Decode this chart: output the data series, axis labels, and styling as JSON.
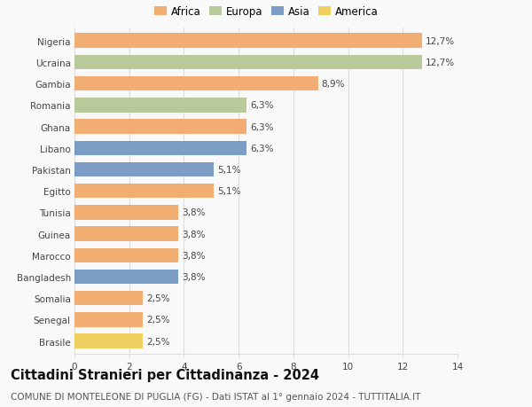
{
  "countries": [
    "Nigeria",
    "Ucraina",
    "Gambia",
    "Romania",
    "Ghana",
    "Libano",
    "Pakistan",
    "Egitto",
    "Tunisia",
    "Guinea",
    "Marocco",
    "Bangladesh",
    "Somalia",
    "Senegal",
    "Brasile"
  ],
  "values": [
    12.7,
    12.7,
    8.9,
    6.3,
    6.3,
    6.3,
    5.1,
    5.1,
    3.8,
    3.8,
    3.8,
    3.8,
    2.5,
    2.5,
    2.5
  ],
  "labels": [
    "12,7%",
    "12,7%",
    "8,9%",
    "6,3%",
    "6,3%",
    "6,3%",
    "5,1%",
    "5,1%",
    "3,8%",
    "3,8%",
    "3,8%",
    "3,8%",
    "2,5%",
    "2,5%",
    "2,5%"
  ],
  "continents": [
    "Africa",
    "Europa",
    "Africa",
    "Europa",
    "Africa",
    "Asia",
    "Asia",
    "Africa",
    "Africa",
    "Africa",
    "Africa",
    "Asia",
    "Africa",
    "Africa",
    "America"
  ],
  "colors": {
    "Africa": "#F2AE72",
    "Europa": "#B8C99A",
    "Asia": "#7B9CC4",
    "America": "#F0D060"
  },
  "title": "Cittadini Stranieri per Cittadinanza - 2024",
  "subtitle": "COMUNE DI MONTELEONE DI PUGLIA (FG) - Dati ISTAT al 1° gennaio 2024 - TUTTITALIA.IT",
  "xlim": [
    0,
    14
  ],
  "xticks": [
    0,
    2,
    4,
    6,
    8,
    10,
    12,
    14
  ],
  "background_color": "#f9f9f9",
  "grid_color": "#dddddd",
  "bar_height": 0.68,
  "title_fontsize": 10.5,
  "subtitle_fontsize": 7.5,
  "label_fontsize": 7.5,
  "tick_fontsize": 7.5,
  "legend_fontsize": 8.5
}
